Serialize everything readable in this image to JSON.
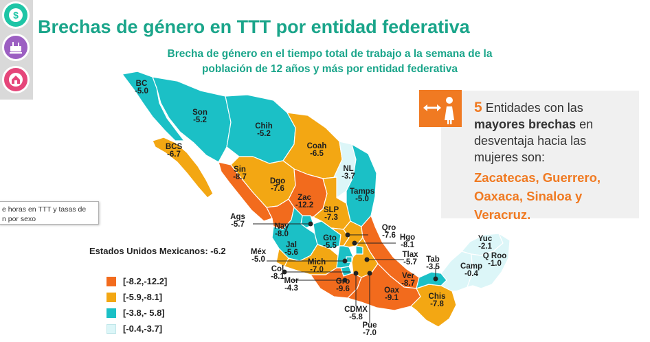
{
  "title": "Brechas de género en TTT por entidad federativa",
  "subtitle_line1": "Brecha de género en el tiempo total de trabajo a la semana de la",
  "subtitle_line2": "población de 12 años y más por entidad federativa",
  "side_icons": [
    {
      "name": "dollar-icon",
      "color": "#1ec5a6"
    },
    {
      "name": "household-cleaning-icon",
      "color": "#9c5fc2"
    },
    {
      "name": "home-care-icon",
      "color": "#e5467a"
    }
  ],
  "tooltip": {
    "line1": "e horas en TTT y tasas de",
    "line2": "n por sexo"
  },
  "national": "Estados Unidos Mexicanos: -6.2",
  "legend": [
    {
      "label": "[-8.2,-12.2]",
      "color": "#f26b1d"
    },
    {
      "label": "[-5.9,-8.1]",
      "color": "#f3a713"
    },
    {
      "label": "[-3.8,- 5.8]",
      "color": "#1bc0c6"
    },
    {
      "label": "[-0.4,-3.7]",
      "color": "#dcf6f8"
    }
  ],
  "states": [
    {
      "abbr": "BC",
      "value": "-5.0"
    },
    {
      "abbr": "Son",
      "value": "-5.2"
    },
    {
      "abbr": "Chih",
      "value": "-5.2"
    },
    {
      "abbr": "BCS",
      "value": "-6.7"
    },
    {
      "abbr": "Coah",
      "value": "-6.5"
    },
    {
      "abbr": "NL",
      "value": "-3.7"
    },
    {
      "abbr": "Sin",
      "value": "-8.7"
    },
    {
      "abbr": "Dgo",
      "value": "-7.6"
    },
    {
      "abbr": "Zac",
      "value": "-12.2"
    },
    {
      "abbr": "Tamps",
      "value": "-5.0"
    },
    {
      "abbr": "SLP",
      "value": "-7.3"
    },
    {
      "abbr": "Ags",
      "value": "-5.7"
    },
    {
      "abbr": "Nay",
      "value": "-8.0"
    },
    {
      "abbr": "Qro",
      "value": "-7.6"
    },
    {
      "abbr": "Gto",
      "value": "-5.5"
    },
    {
      "abbr": "Hgo",
      "value": "-8.1"
    },
    {
      "abbr": "Jal",
      "value": "-5.6"
    },
    {
      "abbr": "Méx",
      "value": "-5.0"
    },
    {
      "abbr": "Yuc",
      "value": "-2.1"
    },
    {
      "abbr": "Tlax",
      "value": "-5.7"
    },
    {
      "abbr": "Mich",
      "value": "-7.0"
    },
    {
      "abbr": "Q Roo",
      "value": "-1.0"
    },
    {
      "abbr": "Tab",
      "value": "-3.5"
    },
    {
      "abbr": "Camp",
      "value": "-0.4"
    },
    {
      "abbr": "Col",
      "value": "-8.1"
    },
    {
      "abbr": "Ver",
      "value": "-8.7"
    },
    {
      "abbr": "Mor",
      "value": "-4.3"
    },
    {
      "abbr": "Gro",
      "value": "-9.6"
    },
    {
      "abbr": "Oax",
      "value": "-9.1"
    },
    {
      "abbr": "Chis",
      "value": "-7.8"
    },
    {
      "abbr": "CDMX",
      "value": "-5.8"
    },
    {
      "abbr": "Pue",
      "value": "-7.0"
    }
  ],
  "callout": {
    "number": "5",
    "text_a": " Entidades con las ",
    "text_strong": "mayores brechas",
    "text_b": " en desventaja hacia las mujeres son:",
    "states_text": "Zacatecas, Guerrero, Oaxaca, Sinaloa y Veracruz.",
    "accent": "#f07a22"
  }
}
